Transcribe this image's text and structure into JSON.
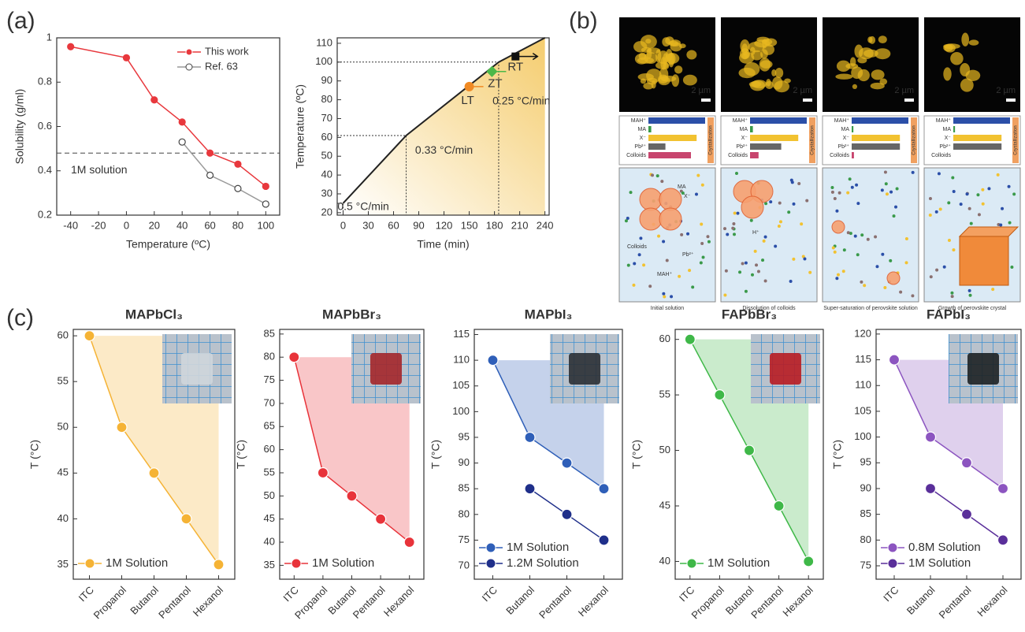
{
  "chart_data": [
    {
      "type": "line",
      "panel_label": "(a)",
      "xlabel": "Temperature (ºC)",
      "ylabel": "Solubility (g/ml)",
      "xlim": [
        -50,
        110
      ],
      "ylim": [
        0.2,
        1.0
      ],
      "xticks": [
        -40,
        -20,
        0,
        20,
        40,
        60,
        80,
        100
      ],
      "yticks": [
        0.2,
        0.4,
        0.6,
        0.8,
        1
      ],
      "hline": {
        "value": 0.48,
        "label": "1M solution"
      },
      "legend": "top-right",
      "series": [
        {
          "name": "This work",
          "color": "#e8383d",
          "marker": "filled",
          "x": [
            -40,
            0,
            20,
            40,
            60,
            80,
            100
          ],
          "values": [
            0.96,
            0.91,
            0.72,
            0.62,
            0.48,
            0.43,
            0.33
          ]
        },
        {
          "name": "Ref. 63",
          "color": "#999999",
          "marker": "open",
          "x": [
            40,
            60,
            80,
            100
          ],
          "values": [
            0.53,
            0.38,
            0.32,
            0.25
          ]
        }
      ]
    },
    {
      "type": "line",
      "xlabel": "Time (min)",
      "ylabel": "Temperature (ºC)",
      "xlim": [
        -7,
        245
      ],
      "ylim": [
        18.7,
        112.9
      ],
      "xticks": [
        0,
        30,
        60,
        90,
        120,
        150,
        180,
        210,
        240
      ],
      "yticks": [
        20,
        30,
        40,
        50,
        60,
        70,
        80,
        90,
        100,
        110
      ],
      "series": [
        {
          "color": "#222222",
          "x": [
            0,
            75,
            185,
            240
          ],
          "values": [
            25,
            61,
            100,
            112.9
          ]
        }
      ],
      "annotations": [
        {
          "text": "0.5 °C/min",
          "x": 24,
          "y": 23
        },
        {
          "text": "0.33 °C/min",
          "x": 120,
          "y": 53
        },
        {
          "text": "0.25 °C/min",
          "x": 212,
          "y": 79
        }
      ],
      "points": [
        {
          "label": "LT",
          "x": 150,
          "y": 87,
          "color": "#f08a24"
        },
        {
          "label": "ZT",
          "x": 177,
          "y": 95,
          "color": "#4cb848"
        },
        {
          "label": "RT",
          "x": 205,
          "y": 103,
          "color": "#111111"
        }
      ]
    },
    {
      "type": "barh",
      "panel_label": "(b)",
      "scale": "2 µm",
      "tag": "Crystallization",
      "caption": "Initial solution",
      "categories": [
        "MAH⁺",
        "MA",
        "X⁻",
        "Pb²⁺",
        "Colloids"
      ],
      "values": [
        100,
        5,
        85,
        30,
        75
      ],
      "colors": [
        "#2b4fa8",
        "#3a9a4a",
        "#f2c230",
        "#666666",
        "#c8456e"
      ],
      "annotations": [
        "MA",
        "X⁻",
        "Colloids",
        "Pb²⁺",
        "MAH⁺"
      ]
    },
    {
      "type": "barh",
      "scale": "2 µm",
      "tag": "Crystallization",
      "caption": "Dissolution of colloids",
      "categories": [
        "MAH⁺",
        "MA",
        "X⁻",
        "Pb²⁺",
        "Colloids"
      ],
      "values": [
        100,
        5,
        85,
        55,
        15
      ],
      "colors": [
        "#2b4fa8",
        "#3a9a4a",
        "#f2c230",
        "#666666",
        "#c8456e"
      ],
      "annotations": [
        "H⁺"
      ]
    },
    {
      "type": "barh",
      "scale": "2 µm",
      "tag": "Crystallization",
      "caption": "Super-saturation of perovskite solution",
      "categories": [
        "MAH⁺",
        "MA",
        "X⁻",
        "Pb²⁺",
        "Colloids"
      ],
      "values": [
        100,
        3,
        85,
        85,
        4
      ],
      "colors": [
        "#2b4fa8",
        "#3a9a4a",
        "#f2c230",
        "#666666",
        "#c8456e"
      ]
    },
    {
      "type": "barh",
      "scale": "2 µm",
      "tag": "Crystallization",
      "caption": "Growth of perovskite crystal",
      "categories": [
        "MAH⁺",
        "MA",
        "X⁻",
        "Pb²⁺",
        "Colloids"
      ],
      "values": [
        100,
        3,
        85,
        85,
        0
      ],
      "colors": [
        "#2b4fa8",
        "#3a9a4a",
        "#f2c230",
        "#666666",
        "#c8456e"
      ]
    },
    {
      "type": "line",
      "panel_label": "(c)",
      "title": "MAPbCl₃",
      "ylabel": "T (°C)",
      "ylim": [
        33.4,
        60.7
      ],
      "yticks": [
        35,
        40,
        45,
        50,
        55,
        60
      ],
      "categories": [
        "ITC",
        "Propanol",
        "Butanol",
        "Pentanol",
        "Hexanol"
      ],
      "legend": "bottom-left",
      "series": [
        {
          "name": "1M Solution",
          "color": "#f5b335",
          "values": [
            60,
            50,
            45,
            40,
            35
          ]
        }
      ]
    },
    {
      "type": "line",
      "title": "MAPbBr₃",
      "ylabel": "T (°C)",
      "ylim": [
        32,
        86
      ],
      "yticks": [
        35,
        40,
        45,
        50,
        55,
        60,
        65,
        70,
        75,
        80,
        85
      ],
      "categories": [
        "ITC",
        "Propanol",
        "Butanol",
        "Pentanol",
        "Hexanol"
      ],
      "legend": "bottom-left",
      "series": [
        {
          "name": "1M Solution",
          "color": "#e8333a",
          "values": [
            80,
            55,
            50,
            45,
            40
          ]
        }
      ]
    },
    {
      "type": "line",
      "title": "MAPbI₃",
      "ylabel": "T (°C)",
      "ylim": [
        67.4,
        116
      ],
      "yticks": [
        70,
        75,
        80,
        85,
        90,
        95,
        100,
        105,
        110,
        115
      ],
      "categories": [
        "ITC",
        "Butanol",
        "Pentanol",
        "Hexanol"
      ],
      "legend": "bottom-left",
      "series": [
        {
          "name": "1M Solution",
          "color": "#2f5fb8",
          "values": [
            110,
            95,
            90,
            85
          ]
        },
        {
          "name": "1.2M Solution",
          "color": "#1f2f8a",
          "values": [
            null,
            85,
            80,
            75
          ]
        }
      ]
    },
    {
      "type": "line",
      "title": "FAPbBr₃",
      "ylabel": "T (°C)",
      "ylim": [
        38.4,
        60.9
      ],
      "yticks": [
        40,
        45,
        50,
        55,
        60
      ],
      "categories": [
        "ITC",
        "Propanol",
        "Butanol",
        "Pentanol",
        "Hexanol"
      ],
      "legend": "bottom-left",
      "series": [
        {
          "name": "1M Solution",
          "color": "#3fb848",
          "values": [
            60,
            55,
            50,
            45,
            40
          ]
        }
      ]
    },
    {
      "type": "line",
      "title": "FAPbI₃",
      "ylabel": "T (°C)",
      "ylim": [
        72.4,
        120.9
      ],
      "yticks": [
        75,
        80,
        85,
        90,
        95,
        100,
        105,
        110,
        115,
        120
      ],
      "categories": [
        "ITC",
        "Butanol",
        "Pentanol",
        "Hexanol"
      ],
      "legend": "bottom-left",
      "series": [
        {
          "name": "0.8M Solution",
          "color": "#8c55c0",
          "values": [
            115,
            100,
            95,
            90
          ]
        },
        {
          "name": "1M Solution",
          "color": "#5a2f9a",
          "values": [
            null,
            90,
            85,
            80
          ]
        }
      ]
    }
  ]
}
